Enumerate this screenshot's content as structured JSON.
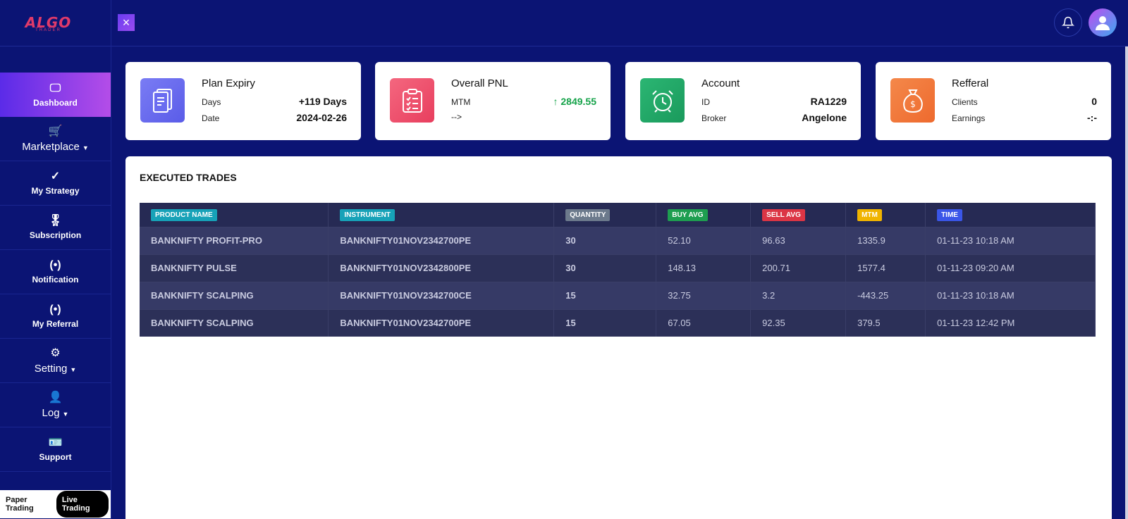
{
  "brand": {
    "logo_text": "ALGO",
    "logo_sub": "TRADER"
  },
  "sidebar": {
    "items": [
      {
        "label": "Dashboard",
        "icon": "monitor-icon",
        "glyph": "🖵",
        "active": true
      },
      {
        "label": "Marketplace",
        "icon": "cart-icon",
        "glyph": "🛒",
        "dropdown": true
      },
      {
        "label": "My Strategy",
        "icon": "check-circle-icon",
        "glyph": "✓"
      },
      {
        "label": "Subscription",
        "icon": "award-icon",
        "glyph": "🎖"
      },
      {
        "label": "Notification",
        "icon": "broadcast-icon",
        "glyph": "(•)"
      },
      {
        "label": "My Referral",
        "icon": "broadcast-icon",
        "glyph": "(•)"
      },
      {
        "label": "Setting",
        "icon": "gear-icon",
        "glyph": "⚙",
        "dropdown": true
      },
      {
        "label": "Log",
        "icon": "user-link-icon",
        "glyph": "👤",
        "dropdown": true
      },
      {
        "label": "Support",
        "icon": "id-card-icon",
        "glyph": "🪪"
      }
    ]
  },
  "mode": {
    "paper": "Paper Trading",
    "live": "Live Trading"
  },
  "cards": {
    "plan": {
      "title": "Plan Expiry",
      "k1": "Days",
      "v1": "+119 Days",
      "k2": "Date",
      "v2": "2024-02-26",
      "color": "#6a6cf0"
    },
    "pnl": {
      "title": "Overall PNL",
      "k1": "MTM",
      "v1": "2849.55",
      "k2": "-->",
      "v2": "",
      "color": "#f0506e",
      "positive_color": "#16a34a"
    },
    "account": {
      "title": "Account",
      "k1": "ID",
      "v1": "RA1229",
      "k2": "Broker",
      "v2": "Angelone",
      "color": "#22a36a"
    },
    "referral": {
      "title": "Refferal",
      "k1": "Clients",
      "v1": "0",
      "k2": "Earnings",
      "v2": "-:-",
      "color": "#f0783a"
    }
  },
  "trades": {
    "title": "EXECUTED TRADES",
    "columns": [
      {
        "label": "PRODUCT NAME",
        "color": "#17a2b8"
      },
      {
        "label": "INSTRUMENT",
        "color": "#17a2b8"
      },
      {
        "label": "QUANTITY",
        "color": "#6c7a8c"
      },
      {
        "label": "BUY AVG",
        "color": "#1e9e50"
      },
      {
        "label": "SELL AVG",
        "color": "#dc3545"
      },
      {
        "label": "MTM",
        "color": "#f0b400"
      },
      {
        "label": "TIME",
        "color": "#3a56e8"
      }
    ],
    "rows": [
      [
        "BANKNIFTY PROFIT-PRO",
        "BANKNIFTY01NOV2342700PE",
        "30",
        "52.10",
        "96.63",
        "1335.9",
        "01-11-23 10:18 AM"
      ],
      [
        "BANKNIFTY PULSE",
        "BANKNIFTY01NOV2342800PE",
        "30",
        "148.13",
        "200.71",
        "1577.4",
        "01-11-23 09:20 AM"
      ],
      [
        "BANKNIFTY SCALPING",
        "BANKNIFTY01NOV2342700CE",
        "15",
        "32.75",
        "3.2",
        "-443.25",
        "01-11-23 10:18 AM"
      ],
      [
        "BANKNIFTY SCALPING",
        "BANKNIFTY01NOV2342700PE",
        "15",
        "67.05",
        "92.35",
        "379.5",
        "01-11-23 12:42 PM"
      ]
    ]
  }
}
